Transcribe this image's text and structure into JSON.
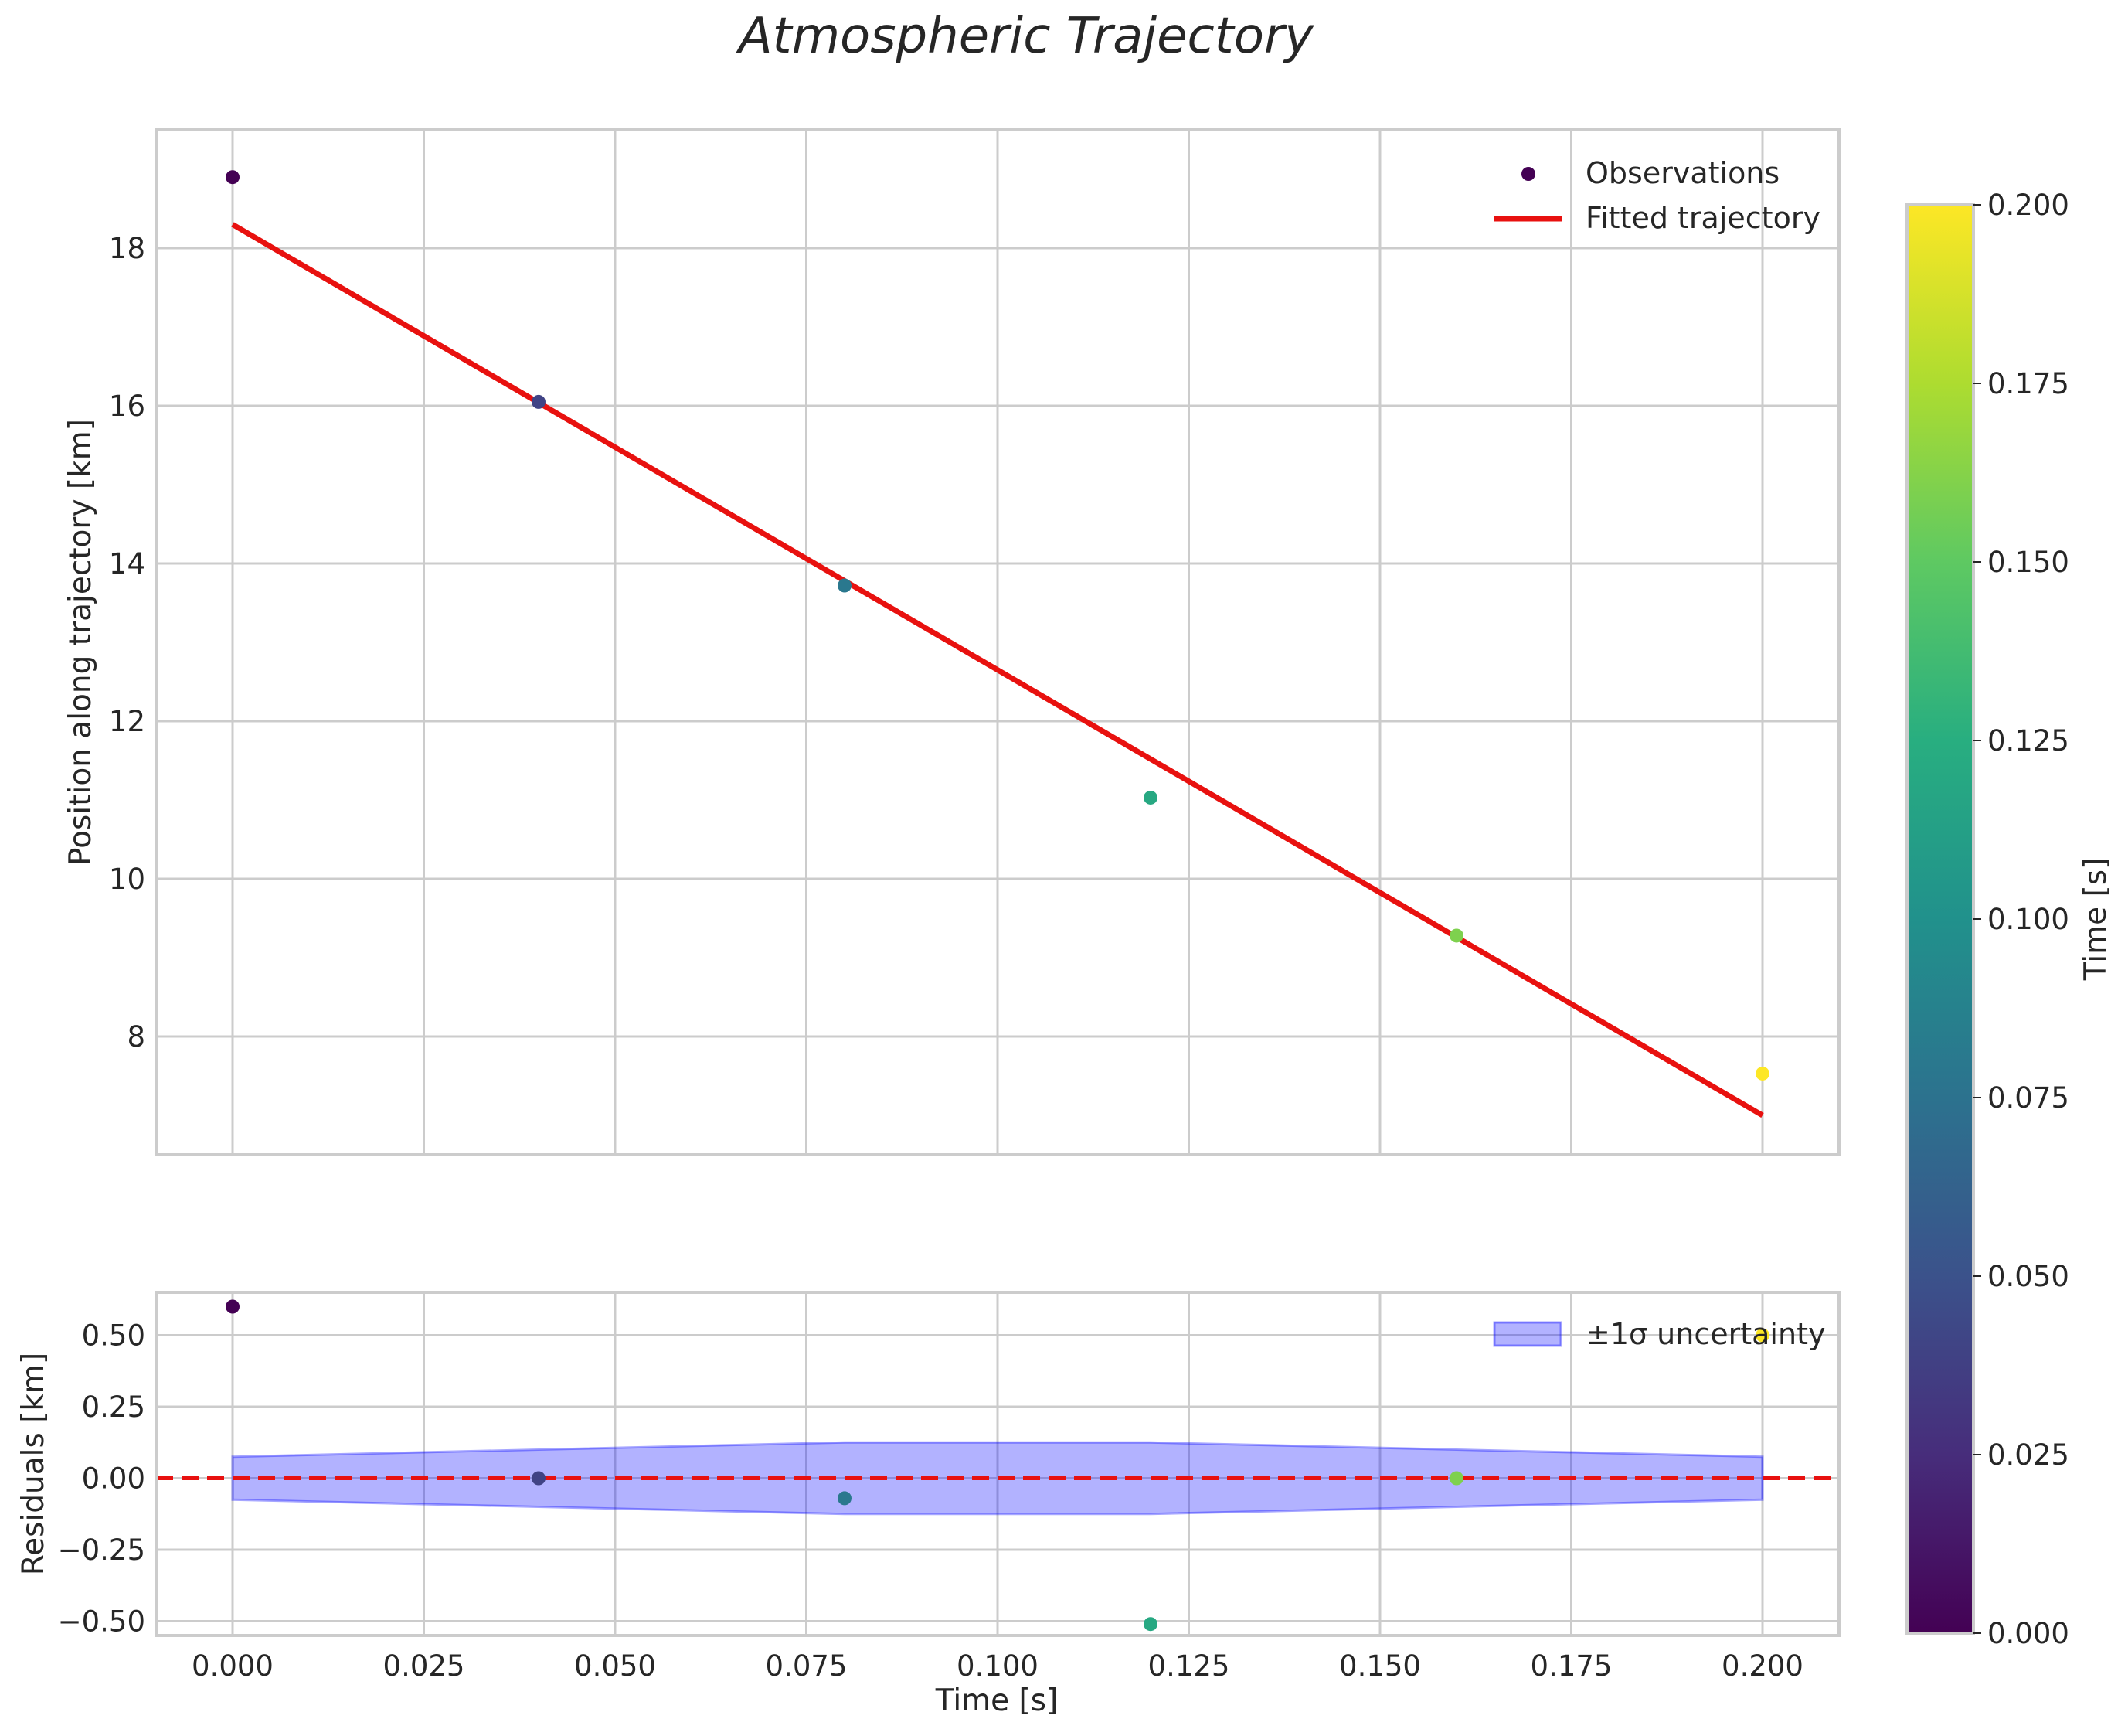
{
  "chart_data": {
    "title": "Atmospheric Trajectory",
    "main_panel": {
      "type": "scatter+line",
      "ylabel": "Position along trajectory [km]",
      "xlim": [
        -0.01,
        0.21
      ],
      "ylim": [
        6.5,
        19.5
      ],
      "yticks": [
        8,
        10,
        12,
        14,
        16,
        18
      ],
      "series": [
        {
          "name": "Observations",
          "type": "scatter",
          "x": [
            0.0,
            0.04,
            0.08,
            0.12,
            0.16,
            0.2
          ],
          "y": [
            18.9,
            16.05,
            13.72,
            11.03,
            9.28,
            7.53
          ]
        },
        {
          "name": "Fitted trajectory",
          "type": "line",
          "color": "#e8110f",
          "x": [
            0.0,
            0.2
          ],
          "y": [
            18.3,
            7.0
          ]
        }
      ],
      "legend": [
        "Observations",
        "Fitted trajectory"
      ],
      "legend_placement": "top-right"
    },
    "residual_panel": {
      "type": "scatter+band",
      "xlabel": "Time [s]",
      "ylabel": "Residuals [km]",
      "xlim": [
        -0.01,
        0.21
      ],
      "ylim": [
        -0.55,
        0.65
      ],
      "yticks": [
        0.5,
        0.25,
        0.0,
        -0.25,
        -0.5
      ],
      "ytick_labels": [
        "0.50",
        "0.25",
        "0.00",
        "−0.25",
        "−0.50"
      ],
      "xticks": [
        0.0,
        0.025,
        0.05,
        0.075,
        0.1,
        0.125,
        0.15,
        0.175,
        0.2
      ],
      "xtick_labels": [
        "0.000",
        "0.025",
        "0.050",
        "0.075",
        "0.100",
        "0.125",
        "0.150",
        "0.175",
        "0.200"
      ],
      "residuals": {
        "x": [
          0.0,
          0.04,
          0.08,
          0.12,
          0.16,
          0.2
        ],
        "y": [
          0.6,
          0.0,
          -0.07,
          -0.51,
          0.0,
          0.5
        ]
      },
      "uncertainty_band": {
        "name": "±1σ uncertainty",
        "x": [
          0.0,
          0.04,
          0.08,
          0.12,
          0.16,
          0.2
        ],
        "sigma": [
          0.075,
          0.1,
          0.125,
          0.125,
          0.1,
          0.075
        ],
        "color": "#0000ff"
      },
      "reference_line": {
        "y": 0.0,
        "style": "dashed",
        "color": "#e8110f"
      },
      "legend": [
        "±1σ uncertainty"
      ],
      "legend_placement": "top-right"
    },
    "colorbar": {
      "label": "Time [s]",
      "colormap": "viridis",
      "range": [
        0.0,
        0.2
      ],
      "ticks": [
        0.0,
        0.025,
        0.05,
        0.075,
        0.1,
        0.125,
        0.15,
        0.175,
        0.2
      ],
      "tick_labels": [
        "0.000",
        "0.025",
        "0.050",
        "0.075",
        "0.100",
        "0.125",
        "0.150",
        "0.175",
        "0.200"
      ]
    }
  }
}
